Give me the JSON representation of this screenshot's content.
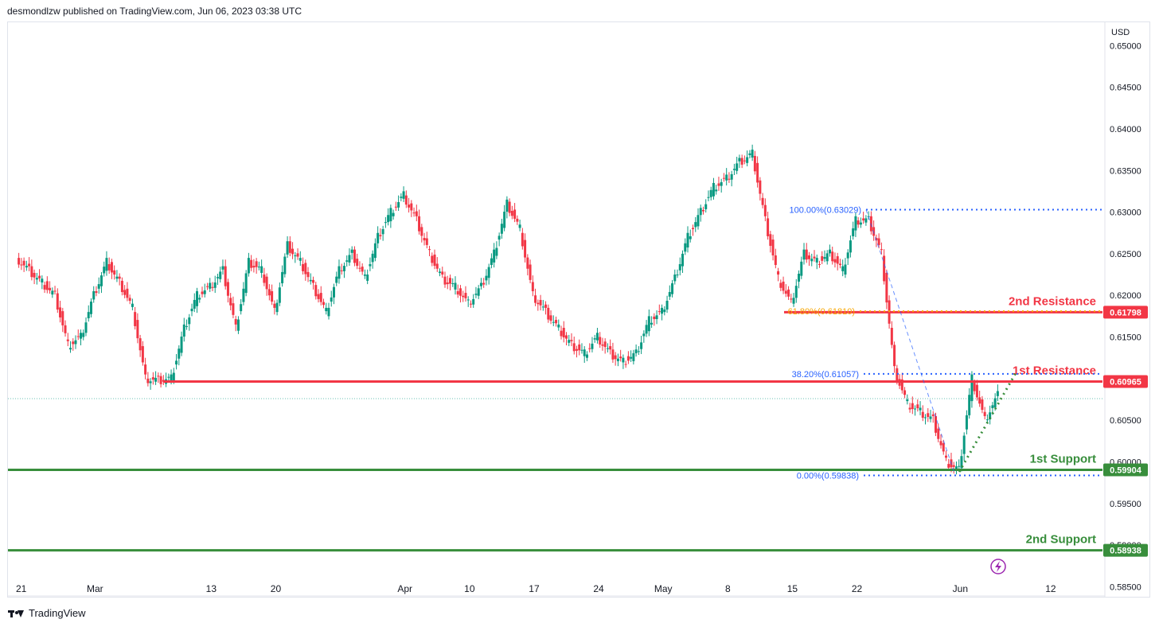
{
  "header": {
    "text": "desmondlzw published on TradingView.com, Jun 06, 2023 03:38 UTC"
  },
  "footer": {
    "brand": "TradingView"
  },
  "chart_data": {
    "type": "candlestick",
    "currency": "USD",
    "ylim": [
      0.5838,
      0.6528
    ],
    "y_ticks": [
      "0.65000",
      "0.64500",
      "0.64000",
      "0.63500",
      "0.63000",
      "0.62500",
      "0.62000",
      "0.61500",
      "0.61000",
      "0.60500",
      "0.60000",
      "0.59500",
      "0.59000",
      "0.58500"
    ],
    "x_ticks": [
      {
        "label": "21",
        "i": 0
      },
      {
        "label": "Mar",
        "i": 6
      },
      {
        "label": "13",
        "i": 15
      },
      {
        "label": "20",
        "i": 20
      },
      {
        "label": "Apr",
        "i": 30
      },
      {
        "label": "10",
        "i": 35
      },
      {
        "label": "17",
        "i": 40
      },
      {
        "label": "24",
        "i": 45
      },
      {
        "label": "May",
        "i": 50
      },
      {
        "label": "8",
        "i": 55
      },
      {
        "label": "15",
        "i": 60
      },
      {
        "label": "22",
        "i": 65
      },
      {
        "label": "Jun",
        "i": 73
      },
      {
        "label": "12",
        "i": 80
      }
    ],
    "price_series": [
      {
        "i": 0,
        "p": 0.6245
      },
      {
        "i": 1,
        "p": 0.623
      },
      {
        "i": 2,
        "p": 0.6215
      },
      {
        "i": 3,
        "p": 0.62
      },
      {
        "i": 4,
        "p": 0.614
      },
      {
        "i": 5,
        "p": 0.615
      },
      {
        "i": 6,
        "p": 0.62
      },
      {
        "i": 7,
        "p": 0.624
      },
      {
        "i": 8,
        "p": 0.6215
      },
      {
        "i": 9,
        "p": 0.6185
      },
      {
        "i": 10,
        "p": 0.61
      },
      {
        "i": 11,
        "p": 0.6098
      },
      {
        "i": 12,
        "p": 0.61
      },
      {
        "i": 13,
        "p": 0.616
      },
      {
        "i": 14,
        "p": 0.62
      },
      {
        "i": 15,
        "p": 0.621
      },
      {
        "i": 16,
        "p": 0.623
      },
      {
        "i": 17,
        "p": 0.616
      },
      {
        "i": 18,
        "p": 0.624
      },
      {
        "i": 19,
        "p": 0.623
      },
      {
        "i": 20,
        "p": 0.618
      },
      {
        "i": 21,
        "p": 0.626
      },
      {
        "i": 22,
        "p": 0.624
      },
      {
        "i": 23,
        "p": 0.621
      },
      {
        "i": 24,
        "p": 0.618
      },
      {
        "i": 25,
        "p": 0.623
      },
      {
        "i": 26,
        "p": 0.625
      },
      {
        "i": 27,
        "p": 0.622
      },
      {
        "i": 28,
        "p": 0.627
      },
      {
        "i": 29,
        "p": 0.63
      },
      {
        "i": 30,
        "p": 0.632
      },
      {
        "i": 31,
        "p": 0.629
      },
      {
        "i": 32,
        "p": 0.625
      },
      {
        "i": 33,
        "p": 0.622
      },
      {
        "i": 34,
        "p": 0.621
      },
      {
        "i": 35,
        "p": 0.619
      },
      {
        "i": 36,
        "p": 0.621
      },
      {
        "i": 37,
        "p": 0.625
      },
      {
        "i": 38,
        "p": 0.631
      },
      {
        "i": 39,
        "p": 0.628
      },
      {
        "i": 40,
        "p": 0.62
      },
      {
        "i": 41,
        "p": 0.618
      },
      {
        "i": 42,
        "p": 0.616
      },
      {
        "i": 43,
        "p": 0.614
      },
      {
        "i": 44,
        "p": 0.613
      },
      {
        "i": 45,
        "p": 0.615
      },
      {
        "i": 46,
        "p": 0.613
      },
      {
        "i": 47,
        "p": 0.612
      },
      {
        "i": 48,
        "p": 0.613
      },
      {
        "i": 49,
        "p": 0.617
      },
      {
        "i": 50,
        "p": 0.618
      },
      {
        "i": 51,
        "p": 0.622
      },
      {
        "i": 52,
        "p": 0.627
      },
      {
        "i": 53,
        "p": 0.63
      },
      {
        "i": 54,
        "p": 0.633
      },
      {
        "i": 55,
        "p": 0.634
      },
      {
        "i": 56,
        "p": 0.636
      },
      {
        "i": 57,
        "p": 0.637
      },
      {
        "i": 58,
        "p": 0.629
      },
      {
        "i": 59,
        "p": 0.622
      },
      {
        "i": 60,
        "p": 0.619
      },
      {
        "i": 61,
        "p": 0.625
      },
      {
        "i": 62,
        "p": 0.624
      },
      {
        "i": 63,
        "p": 0.625
      },
      {
        "i": 64,
        "p": 0.623
      },
      {
        "i": 65,
        "p": 0.629
      },
      {
        "i": 66,
        "p": 0.629
      },
      {
        "i": 67,
        "p": 0.625
      },
      {
        "i": 68,
        "p": 0.611
      },
      {
        "i": 69,
        "p": 0.607
      },
      {
        "i": 70,
        "p": 0.606
      },
      {
        "i": 71,
        "p": 0.605
      },
      {
        "i": 72,
        "p": 0.6
      },
      {
        "i": 73,
        "p": 0.599
      },
      {
        "i": 74,
        "p": 0.61
      },
      {
        "i": 75,
        "p": 0.605
      },
      {
        "i": 76,
        "p": 0.608
      }
    ],
    "levels": [
      {
        "label": "2nd Resistance",
        "value": 0.61798,
        "badge": "0.61798",
        "color": "#f23645",
        "kind": "resistance"
      },
      {
        "label": "1st Resistance",
        "value": 0.60965,
        "badge": "0.60965",
        "color": "#f23645",
        "kind": "resistance"
      },
      {
        "label": "1st Support",
        "value": 0.59904,
        "badge": "0.59904",
        "color": "#388e3c",
        "kind": "support"
      },
      {
        "label": "2nd Support",
        "value": 0.58938,
        "badge": "0.58938",
        "color": "#388e3c",
        "kind": "support"
      }
    ],
    "fibonacci": [
      {
        "label": "100.00%(0.63029)",
        "value": 0.63029,
        "color": "#2962ff"
      },
      {
        "label": "61.80%(0.61810)",
        "value": 0.6181,
        "color": "#f7a600"
      },
      {
        "label": "38.20%(0.61057)",
        "value": 0.61057,
        "color": "#2962ff"
      },
      {
        "label": "0.00%(0.59838)",
        "value": 0.59838,
        "color": "#2962ff"
      }
    ],
    "current_price": 0.6076,
    "colors": {
      "up": "#089981",
      "down": "#f23645",
      "support": "#388e3c",
      "resistance": "#f23645",
      "grid": "#f0f3fa",
      "text": "#131722"
    }
  }
}
